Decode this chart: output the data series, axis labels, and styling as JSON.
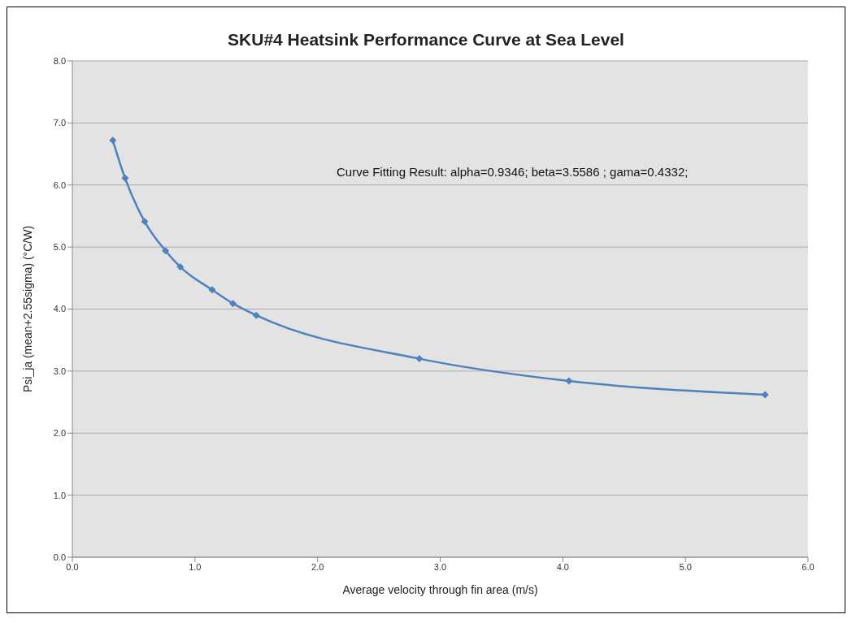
{
  "chart_data": {
    "type": "line",
    "title": "SKU#4 Heatsink Performance Curve at Sea Level",
    "xlabel": "Average velocity through fin area (m/s)",
    "ylabel": "Psi_ja (mean+2.55sigma) (°C/W)",
    "annotations": [
      "Curve Fitting Result: alpha=0.9346; beta=3.5586 ; gama=0.4332;"
    ],
    "x": [
      0.33,
      0.43,
      0.59,
      0.76,
      0.88,
      1.14,
      1.31,
      1.5,
      2.83,
      4.05,
      5.65
    ],
    "series": [
      {
        "color": "#4f81bd",
        "values": [
          6.72,
          6.11,
          5.41,
          4.94,
          4.68,
          4.31,
          4.09,
          3.9,
          3.2,
          2.84,
          2.62
        ]
      }
    ],
    "xlim": [
      0,
      6
    ],
    "xticks": [
      {
        "value": 0,
        "label": "0.0"
      },
      {
        "value": 1,
        "label": "1.0"
      },
      {
        "value": 2,
        "label": "2.0"
      },
      {
        "value": 3,
        "label": "3.0"
      },
      {
        "value": 4,
        "label": "4.0"
      },
      {
        "value": 5,
        "label": "5.0"
      },
      {
        "value": 6,
        "label": "6.0"
      }
    ],
    "ylim": [
      0,
      8
    ],
    "yticks": [
      {
        "value": 0,
        "label": "0.0"
      },
      {
        "value": 1,
        "label": "1.0"
      },
      {
        "value": 2,
        "label": "2.0"
      },
      {
        "value": 3,
        "label": "3.0"
      },
      {
        "value": 4,
        "label": "4.0"
      },
      {
        "value": 5,
        "label": "5.0"
      },
      {
        "value": 6,
        "label": "6.0"
      },
      {
        "value": 7,
        "label": "7.0"
      },
      {
        "value": 8,
        "label": "8.0"
      }
    ],
    "grid": "y",
    "marker": "diamond",
    "line_style": "solid"
  }
}
